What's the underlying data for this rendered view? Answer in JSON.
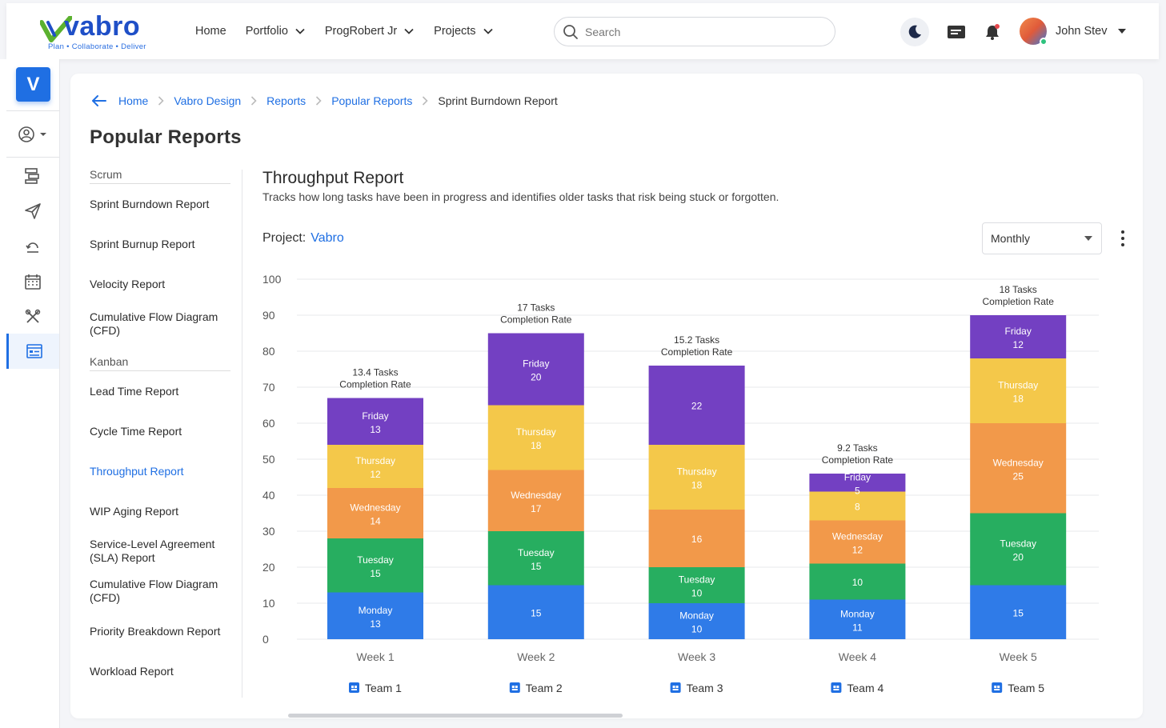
{
  "header": {
    "logo_word": "vabro",
    "logo_tagline": "Plan • Collaborate • Deliver",
    "nav": [
      {
        "label": "Home",
        "dropdown": false
      },
      {
        "label": "Portfolio",
        "dropdown": true
      },
      {
        "label": "ProgRobert Jr",
        "dropdown": true
      },
      {
        "label": "Projects",
        "dropdown": true
      }
    ],
    "search_placeholder": "Search",
    "user_name": "John Stev"
  },
  "rail": {
    "logo_letter": "V",
    "icons": [
      "user-circle-icon",
      "board-icon",
      "send-icon",
      "cycle-icon",
      "calendar-icon",
      "tools-icon",
      "reports-icon"
    ],
    "active_icon": "reports-icon"
  },
  "breadcrumb": [
    "Home",
    "Vabro Design",
    "Reports",
    "Popular Reports",
    "Sprint Burndown Report"
  ],
  "page_title": "Popular Reports",
  "report_groups": [
    {
      "name": "Scrum",
      "items": [
        "Sprint Burndown Report",
        "Sprint Burnup Report",
        "Velocity Report",
        "Cumulative Flow Diagram (CFD)"
      ]
    },
    {
      "name": "Kanban",
      "items": [
        "Lead Time Report",
        "Cycle Time Report",
        "Throughput Report",
        "WIP Aging Report",
        "Service-Level Agreement (SLA) Report",
        "Cumulative Flow Diagram (CFD)",
        "Priority Breakdown Report",
        "Workload Report"
      ]
    }
  ],
  "active_report": "Throughput Report",
  "report": {
    "title": "Throughput Report",
    "description": "Tracks how long tasks have been in progress and identifies older tasks that risk being stuck or forgotten.",
    "project_label": "Project:",
    "project_value": "Vabro",
    "period": "Monthly"
  },
  "chart_data": {
    "type": "bar",
    "stacked": true,
    "ylim": [
      0,
      100
    ],
    "yticks": [
      0,
      10,
      20,
      30,
      40,
      50,
      60,
      70,
      80,
      90,
      100
    ],
    "grid": true,
    "categories": [
      "Week 1",
      "Week 2",
      "Week 3",
      "Week 4",
      "Week 5"
    ],
    "teams": [
      "Team 1",
      "Team 2",
      "Team 3",
      "Team 4",
      "Team 5"
    ],
    "top_labels": [
      [
        "13.4 Tasks",
        "Completion Rate"
      ],
      [
        "17 Tasks",
        "Completion Rate"
      ],
      [
        "15.2 Tasks",
        "Completion Rate"
      ],
      [
        "9.2 Tasks",
        "Completion Rate"
      ],
      [
        "18 Tasks",
        "Completion Rate"
      ]
    ],
    "series": [
      {
        "name": "Monday",
        "color": "#2f7be8",
        "values": [
          13,
          15,
          10,
          11,
          15
        ],
        "label_name": [
          true,
          false,
          true,
          true,
          false
        ]
      },
      {
        "name": "Tuesday",
        "color": "#27ae60",
        "values": [
          15,
          15,
          10,
          10,
          20
        ],
        "label_name": [
          true,
          true,
          true,
          false,
          true
        ]
      },
      {
        "name": "Wednesday",
        "color": "#f2994a",
        "values": [
          14,
          17,
          16,
          12,
          25
        ],
        "label_name": [
          true,
          true,
          false,
          true,
          true
        ]
      },
      {
        "name": "Thursday",
        "color": "#f4c84a",
        "values": [
          12,
          18,
          18,
          8,
          18
        ],
        "label_name": [
          true,
          true,
          true,
          false,
          true
        ]
      },
      {
        "name": "Friday",
        "color": "#7340c2",
        "values": [
          13,
          20,
          22,
          5,
          12
        ],
        "label_name": [
          true,
          true,
          false,
          true,
          true
        ]
      }
    ]
  }
}
